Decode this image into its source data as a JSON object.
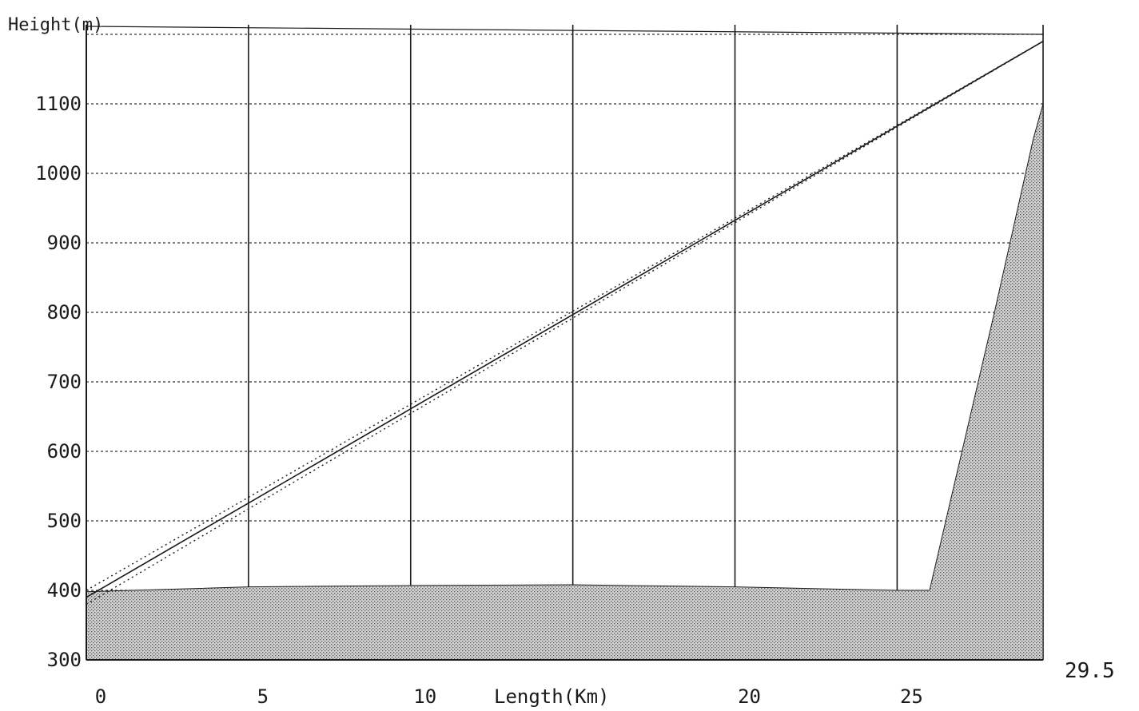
{
  "chart_data": {
    "type": "line",
    "title": "",
    "xlabel": "Length(Km)",
    "ylabel": "Height(m)",
    "xlim": [
      0,
      29.5
    ],
    "ylim": [
      300,
      1200
    ],
    "x_ticks": [
      "0",
      "5",
      "10",
      "20",
      "25"
    ],
    "x_end_label": "29.5",
    "y_ticks": [
      "300",
      "400",
      "500",
      "600",
      "700",
      "800",
      "900",
      "1000",
      "1100"
    ],
    "x_gridlines": [
      0,
      5,
      10,
      15,
      20,
      25,
      29.5
    ],
    "y_gridlines": [
      400,
      500,
      600,
      700,
      800,
      900,
      1000,
      1100,
      1200
    ],
    "grid": true,
    "legend": "none",
    "series": [
      {
        "style": "solid",
        "x": [
          0,
          29.5
        ],
        "y": [
          390,
          1190
        ]
      },
      {
        "style": "dotted",
        "x": [
          0,
          29.5
        ],
        "y": [
          400,
          1190
        ]
      },
      {
        "style": "dotted",
        "x": [
          0,
          29.5
        ],
        "y": [
          380,
          1190
        ]
      }
    ],
    "terrain": {
      "x": [
        0,
        5,
        10,
        15,
        20,
        25,
        26,
        28,
        29.2,
        29.5
      ],
      "y": [
        398,
        405,
        407,
        408,
        405,
        400,
        400,
        800,
        1050,
        1100
      ]
    },
    "colors": {
      "line": "#1a1a1a",
      "terrain_fill": "#b8b8b8",
      "grid": "#333333"
    }
  }
}
